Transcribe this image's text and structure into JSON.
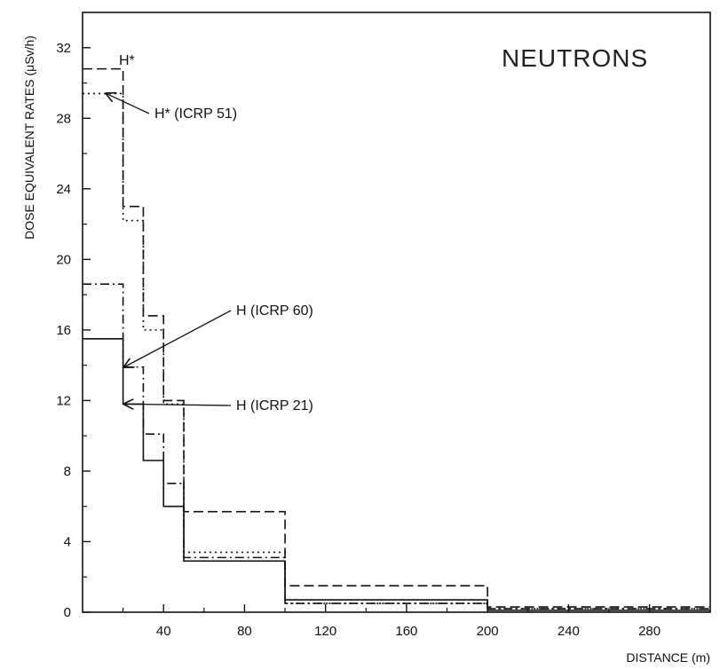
{
  "chart_data": {
    "type": "line",
    "title": "NEUTRONS",
    "xlabel": "DISTANCE (m)",
    "ylabel": "DOSE EQUIVALENT RATES (μSv/h)",
    "xlim": [
      0,
      310
    ],
    "ylim": [
      0,
      34
    ],
    "x_ticks": [
      40,
      80,
      120,
      160,
      200,
      240,
      280
    ],
    "x_tick_labels": [
      "40",
      "80",
      "120",
      "160",
      "200",
      "240",
      "280"
    ],
    "y_ticks": [
      0,
      4,
      8,
      12,
      16,
      20,
      24,
      28,
      32
    ],
    "y_tick_labels": [
      "0",
      "4",
      "8",
      "12",
      "16",
      "20",
      "24",
      "28",
      "32"
    ],
    "grid": false,
    "bin_edges": [
      0,
      20,
      30,
      40,
      50,
      100,
      200,
      310
    ],
    "series": [
      {
        "name": "H*",
        "style": "dashed",
        "values": [
          30.8,
          23.0,
          16.8,
          12.0,
          5.7,
          1.5,
          0.3
        ]
      },
      {
        "name": "H* (ICRP 51)",
        "style": "dotted",
        "values": [
          29.4,
          22.2,
          16.0,
          11.8,
          3.4,
          0.5,
          0.2
        ]
      },
      {
        "name": "H (ICRP 60)",
        "style": "dashdot",
        "values": [
          18.6,
          13.9,
          10.1,
          7.3,
          3.1,
          0.5,
          0.2
        ]
      },
      {
        "name": "H (ICRP 21)",
        "style": "solid",
        "values": [
          15.5,
          11.8,
          8.6,
          6.0,
          2.9,
          0.7,
          0.1
        ]
      }
    ],
    "annotations": [
      {
        "text": "H*",
        "target_series": 0,
        "bin": 0
      },
      {
        "text": "H* (ICRP 51)",
        "target_series": 1,
        "bin": 0
      },
      {
        "text": "H (ICRP 60)",
        "target_series": 2,
        "bin": 1
      },
      {
        "text": "H (ICRP 21)",
        "target_series": 3,
        "bin": 1
      }
    ]
  }
}
